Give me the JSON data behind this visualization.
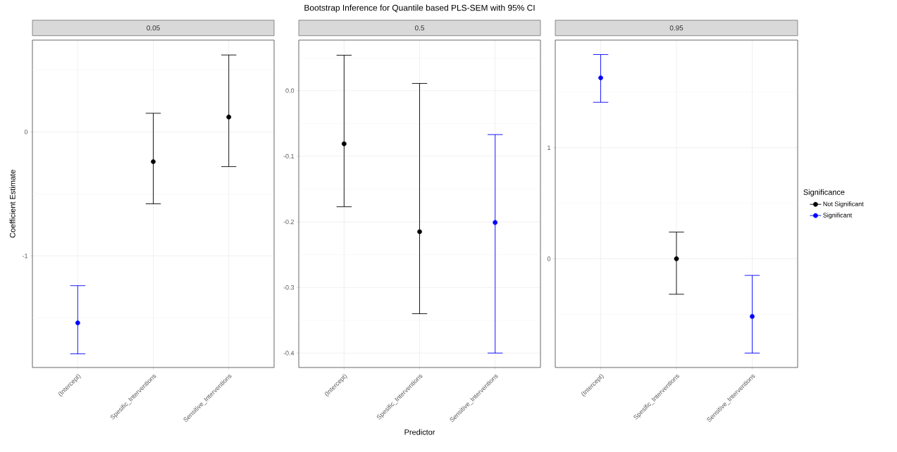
{
  "chart_data": [
    {
      "type": "scatter",
      "subtitle": "0.05",
      "ylabel": "Coefficient Estimate",
      "categories": [
        "(Intercept)",
        "Spesific_Interventions",
        "Sensitive_Interventions"
      ],
      "ylim": [
        -1.9,
        0.74
      ],
      "yticks": [
        {
          "value": -1.5,
          "label": null
        },
        -1,
        {
          "value": -0.5,
          "label": null
        },
        0,
        {
          "value": 0.5,
          "label": null
        }
      ],
      "grid": true,
      "marker": "circle",
      "series": [
        {
          "color": "#000000",
          "values": [
            null,
            -0.24,
            0.12
          ],
          "errors": [
            null,
            [
              -0.58,
              0.15
            ],
            [
              -0.28,
              0.62
            ]
          ]
        },
        {
          "color": "#0000ff",
          "values": [
            -1.54,
            null,
            null
          ],
          "errors": [
            [
              -1.79,
              -1.24
            ],
            null,
            null
          ]
        }
      ]
    },
    {
      "type": "scatter",
      "title": "Bootstrap Inference for Quantile based PLS-SEM with 95% CI",
      "subtitle": "0.5",
      "xlabel": "Predictor",
      "categories": [
        "(Intercept)",
        "Spesific_Interventions",
        "Sensitive_Interventions"
      ],
      "ylim": [
        -0.422,
        0.077
      ],
      "yticks": [
        -0.4,
        {
          "value": -0.35,
          "label": null
        },
        -0.3,
        {
          "value": -0.25,
          "label": null
        },
        -0.2,
        {
          "value": -0.15,
          "label": null
        },
        -0.1,
        {
          "value": -0.05,
          "label": null
        },
        {
          "value": 0,
          "label": "0.0"
        },
        {
          "value": 0.05,
          "label": null
        }
      ],
      "grid": true,
      "marker": "circle",
      "series": [
        {
          "color": "#000000",
          "values": [
            -0.081,
            -0.215,
            null
          ],
          "errors": [
            [
              -0.177,
              0.054
            ],
            [
              -0.34,
              0.011
            ],
            null
          ]
        },
        {
          "color": "#0000ff",
          "values": [
            null,
            null,
            -0.201
          ],
          "errors": [
            null,
            null,
            [
              -0.4,
              -0.067
            ]
          ]
        }
      ]
    },
    {
      "type": "scatter",
      "subtitle": "0.95",
      "categories": [
        "(Intercept)",
        "Spesific_Interventions",
        "Sensitive_Interventions"
      ],
      "ylim": [
        -0.98,
        1.97
      ],
      "yticks": [
        {
          "value": -0.5,
          "label": null
        },
        0,
        {
          "value": 0.5,
          "label": null
        },
        1,
        {
          "value": 1.5,
          "label": null
        }
      ],
      "grid": true,
      "marker": "circle",
      "legend": "right",
      "legend_title": "Significance",
      "series": [
        {
          "name": "Not Significant",
          "color": "#000000",
          "values": [
            null,
            0.0,
            null
          ],
          "errors": [
            null,
            [
              -0.32,
              0.24
            ],
            null
          ]
        },
        {
          "name": "Significant",
          "color": "#0000ff",
          "values": [
            1.63,
            null,
            -0.52
          ],
          "errors": [
            [
              1.41,
              1.84
            ],
            null,
            [
              -0.85,
              -0.15
            ]
          ]
        }
      ]
    }
  ]
}
